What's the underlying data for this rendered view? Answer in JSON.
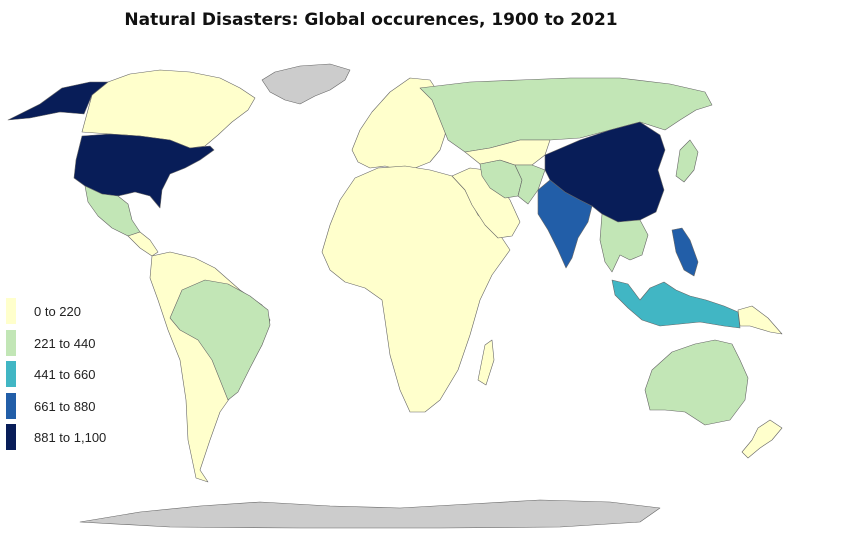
{
  "title": "Natural Disasters: Global occurences, 1900 to 2021",
  "colors": {
    "ocean": "#ffffff",
    "no_data": "#cccccc",
    "border": "#666666"
  },
  "legend": [
    {
      "label": "0 to 220",
      "color": "#ffffcc"
    },
    {
      "label": "221 to 440",
      "color": "#c2e6b6"
    },
    {
      "label": "441 to 660",
      "color": "#41b6c4"
    },
    {
      "label": "661 to 880",
      "color": "#225ea8"
    },
    {
      "label": "881 to 1,100",
      "color": "#081d58"
    }
  ],
  "regions": [
    {
      "name": "Canada",
      "bin": 0
    },
    {
      "name": "Alaska",
      "bin": 4
    },
    {
      "name": "United States",
      "bin": 4
    },
    {
      "name": "Mexico",
      "bin": 1
    },
    {
      "name": "Central America",
      "bin": 0
    },
    {
      "name": "South America",
      "bin": 0
    },
    {
      "name": "Brazil",
      "bin": 1
    },
    {
      "name": "Greenland",
      "bin": -1
    },
    {
      "name": "Europe",
      "bin": 0
    },
    {
      "name": "Russia",
      "bin": 1
    },
    {
      "name": "Africa",
      "bin": 0
    },
    {
      "name": "Middle East",
      "bin": 0
    },
    {
      "name": "Iran",
      "bin": 1
    },
    {
      "name": "Central Asia",
      "bin": 0
    },
    {
      "name": "Afghanistan-Pakistan",
      "bin": 1
    },
    {
      "name": "India",
      "bin": 3
    },
    {
      "name": "China",
      "bin": 4
    },
    {
      "name": "Japan",
      "bin": 1
    },
    {
      "name": "Southeast Asia",
      "bin": 1
    },
    {
      "name": "Philippines",
      "bin": 3
    },
    {
      "name": "Indonesia",
      "bin": 2
    },
    {
      "name": "Papua New Guinea",
      "bin": 0
    },
    {
      "name": "Australia",
      "bin": 1
    },
    {
      "name": "New Zealand",
      "bin": 0
    },
    {
      "name": "Antarctica",
      "bin": -1
    }
  ]
}
